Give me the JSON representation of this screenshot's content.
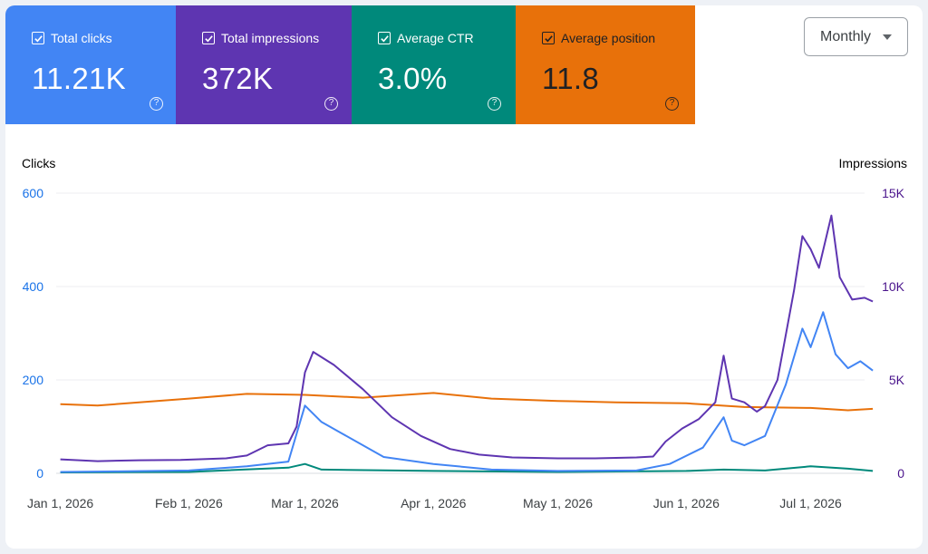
{
  "metrics": [
    {
      "label": "Total clicks",
      "value": "11.21K",
      "color": "#4285f4",
      "text_color": "#ffffff"
    },
    {
      "label": "Total impressions",
      "value": "372K",
      "color": "#5e35b1",
      "text_color": "#ffffff"
    },
    {
      "label": "Average CTR",
      "value": "3.0%",
      "color": "#00897b",
      "text_color": "#ffffff"
    },
    {
      "label": "Average position",
      "value": "11.8",
      "color": "#e8710a",
      "text_color": "#202124"
    }
  ],
  "period_selector": {
    "value": "Monthly"
  },
  "chart_data": {
    "type": "line",
    "left_axis": {
      "label": "Clicks",
      "ticks": [
        "0",
        "200",
        "400",
        "600"
      ],
      "range": [
        0,
        600
      ],
      "color": "#1a73e8"
    },
    "right_axis": {
      "label": "Impressions",
      "ticks": [
        "0",
        "5K",
        "10K",
        "15K"
      ],
      "range": [
        0,
        15000
      ],
      "color": "#4a148c"
    },
    "x_range": [
      "2025-12-31",
      "2026-07-14"
    ],
    "x_ticks": [
      {
        "date": "2026-01-01",
        "label": "Jan 1, 2026"
      },
      {
        "date": "2026-02-01",
        "label": "Feb 1, 2026"
      },
      {
        "date": "2026-03-01",
        "label": "Mar 1, 2026"
      },
      {
        "date": "2026-04-01",
        "label": "Apr 1, 2026"
      },
      {
        "date": "2026-05-01",
        "label": "May 1, 2026"
      },
      {
        "date": "2026-06-01",
        "label": "Jun 1, 2026"
      },
      {
        "date": "2026-07-01",
        "label": "Jul 1, 2026"
      }
    ],
    "grid": true,
    "series": [
      {
        "name": "Total impressions",
        "axis": "right",
        "color": "#5e35b1",
        "points": [
          [
            "2026-01-01",
            750
          ],
          [
            "2026-01-10",
            650
          ],
          [
            "2026-01-20",
            700
          ],
          [
            "2026-01-30",
            720
          ],
          [
            "2026-02-10",
            800
          ],
          [
            "2026-02-15",
            950
          ],
          [
            "2026-02-20",
            1500
          ],
          [
            "2026-02-25",
            1600
          ],
          [
            "2026-02-27",
            2500
          ],
          [
            "2026-03-01",
            5400
          ],
          [
            "2026-03-03",
            6500
          ],
          [
            "2026-03-08",
            5800
          ],
          [
            "2026-03-15",
            4500
          ],
          [
            "2026-03-22",
            3000
          ],
          [
            "2026-03-29",
            2000
          ],
          [
            "2026-04-05",
            1300
          ],
          [
            "2026-04-12",
            1000
          ],
          [
            "2026-04-20",
            850
          ],
          [
            "2026-05-01",
            800
          ],
          [
            "2026-05-10",
            800
          ],
          [
            "2026-05-20",
            850
          ],
          [
            "2026-05-24",
            900
          ],
          [
            "2026-05-27",
            1700
          ],
          [
            "2026-05-31",
            2400
          ],
          [
            "2026-06-04",
            2900
          ],
          [
            "2026-06-08",
            3800
          ],
          [
            "2026-06-10",
            6300
          ],
          [
            "2026-06-12",
            4000
          ],
          [
            "2026-06-15",
            3800
          ],
          [
            "2026-06-18",
            3300
          ],
          [
            "2026-06-20",
            3600
          ],
          [
            "2026-06-23",
            5000
          ],
          [
            "2026-06-27",
            9800
          ],
          [
            "2026-06-29",
            12700
          ],
          [
            "2026-07-01",
            12000
          ],
          [
            "2026-07-03",
            11000
          ],
          [
            "2026-07-06",
            13800
          ],
          [
            "2026-07-08",
            10500
          ],
          [
            "2026-07-11",
            9300
          ],
          [
            "2026-07-14",
            9400
          ],
          [
            "2026-07-16",
            9200
          ]
        ]
      },
      {
        "name": "Total clicks",
        "axis": "left",
        "color": "#4285f4",
        "points": [
          [
            "2026-01-01",
            3
          ],
          [
            "2026-01-15",
            4
          ],
          [
            "2026-02-01",
            6
          ],
          [
            "2026-02-15",
            15
          ],
          [
            "2026-02-25",
            25
          ],
          [
            "2026-03-01",
            145
          ],
          [
            "2026-03-05",
            110
          ],
          [
            "2026-03-10",
            85
          ],
          [
            "2026-03-20",
            35
          ],
          [
            "2026-04-01",
            20
          ],
          [
            "2026-04-15",
            8
          ],
          [
            "2026-05-01",
            5
          ],
          [
            "2026-05-20",
            6
          ],
          [
            "2026-05-28",
            20
          ],
          [
            "2026-06-05",
            55
          ],
          [
            "2026-06-10",
            120
          ],
          [
            "2026-06-12",
            70
          ],
          [
            "2026-06-15",
            60
          ],
          [
            "2026-06-20",
            80
          ],
          [
            "2026-06-25",
            190
          ],
          [
            "2026-06-29",
            310
          ],
          [
            "2026-07-01",
            270
          ],
          [
            "2026-07-04",
            345
          ],
          [
            "2026-07-07",
            255
          ],
          [
            "2026-07-10",
            225
          ],
          [
            "2026-07-13",
            240
          ],
          [
            "2026-07-16",
            220
          ]
        ]
      },
      {
        "name": "Average CTR",
        "axis": "left",
        "color": "#00897b",
        "points": [
          [
            "2026-01-01",
            2
          ],
          [
            "2026-02-01",
            3
          ],
          [
            "2026-02-25",
            12
          ],
          [
            "2026-03-01",
            20
          ],
          [
            "2026-03-05",
            8
          ],
          [
            "2026-04-01",
            5
          ],
          [
            "2026-05-01",
            3
          ],
          [
            "2026-06-01",
            5
          ],
          [
            "2026-06-10",
            8
          ],
          [
            "2026-06-20",
            6
          ],
          [
            "2026-07-01",
            15
          ],
          [
            "2026-07-10",
            10
          ],
          [
            "2026-07-16",
            5
          ]
        ]
      },
      {
        "name": "Average position",
        "axis": "left",
        "color": "#e8710a",
        "points": [
          [
            "2026-01-01",
            148
          ],
          [
            "2026-01-10",
            145
          ],
          [
            "2026-01-20",
            152
          ],
          [
            "2026-02-01",
            160
          ],
          [
            "2026-02-15",
            170
          ],
          [
            "2026-03-01",
            168
          ],
          [
            "2026-03-15",
            162
          ],
          [
            "2026-04-01",
            172
          ],
          [
            "2026-04-15",
            160
          ],
          [
            "2026-05-01",
            155
          ],
          [
            "2026-05-15",
            152
          ],
          [
            "2026-06-01",
            150
          ],
          [
            "2026-06-15",
            142
          ],
          [
            "2026-07-01",
            140
          ],
          [
            "2026-07-10",
            135
          ],
          [
            "2026-07-16",
            138
          ]
        ]
      }
    ]
  }
}
